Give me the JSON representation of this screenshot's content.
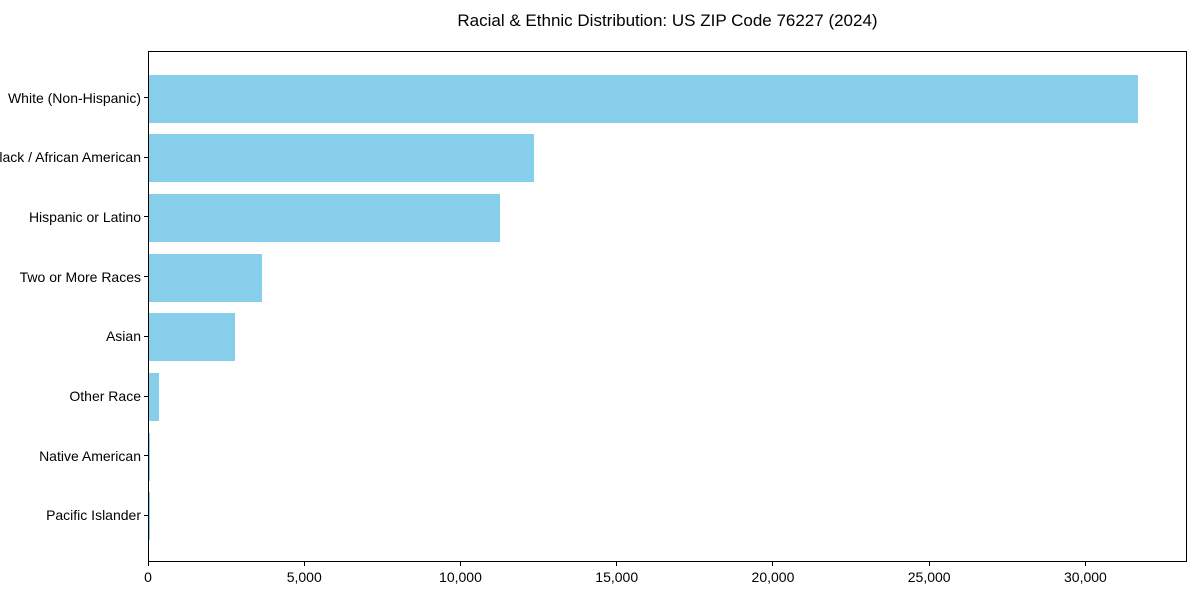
{
  "title": "Racial & Ethnic Distribution: US ZIP Code 76227 (2024)",
  "chart_data": {
    "type": "bar",
    "orientation": "horizontal",
    "title": "Racial & Ethnic Distribution: US ZIP Code 76227 (2024)",
    "categories": [
      "White (Non-Hispanic)",
      "Black / African American",
      "Hispanic or Latino",
      "Two or More Races",
      "Asian",
      "Other Race",
      "Native American",
      "Pacific Islander"
    ],
    "values": [
      31650,
      12320,
      11230,
      3620,
      2750,
      320,
      40,
      15
    ],
    "xlabel": "",
    "ylabel": "",
    "xlim": [
      0,
      33250
    ],
    "x_ticks": [
      0,
      5000,
      10000,
      15000,
      20000,
      25000,
      30000
    ],
    "x_tick_labels": [
      "0",
      "5,000",
      "10,000",
      "15,000",
      "20,000",
      "25,000",
      "30,000"
    ],
    "bar_color": "#87CEEB",
    "axis_color": "#000000",
    "background_color": "#ffffff",
    "grid": false,
    "legend": null
  }
}
